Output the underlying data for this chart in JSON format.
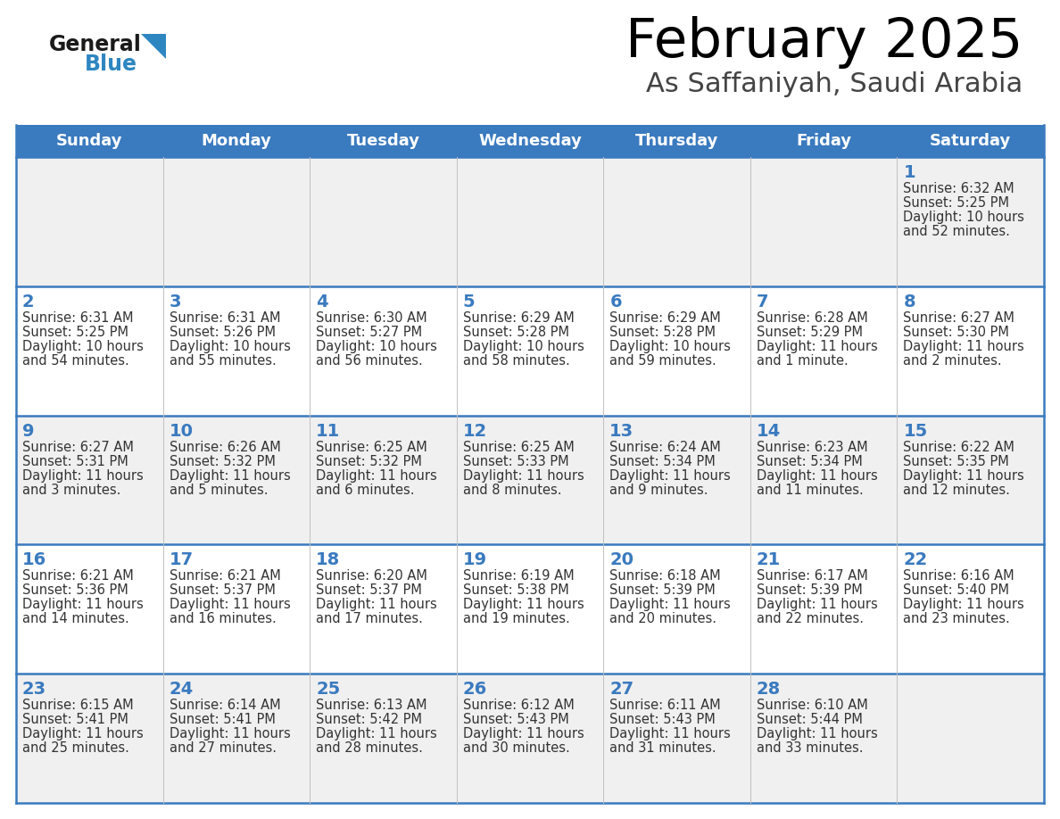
{
  "title": "February 2025",
  "subtitle": "As Saffaniyah, Saudi Arabia",
  "days_of_week": [
    "Sunday",
    "Monday",
    "Tuesday",
    "Wednesday",
    "Thursday",
    "Friday",
    "Saturday"
  ],
  "header_bg": "#3a7abf",
  "header_text_color": "#ffffff",
  "cell_bg_odd": "#f0f0f0",
  "cell_bg_even": "#ffffff",
  "border_color": "#3a7abf",
  "title_color": "#000000",
  "subtitle_color": "#444444",
  "day_number_color": "#3a7abf",
  "detail_color": "#333333",
  "logo_general_color": "#1a1a1a",
  "logo_blue_color": "#2e86c1",
  "calendar_data": [
    [
      null,
      null,
      null,
      null,
      null,
      null,
      {
        "day": "1",
        "sunrise": "6:32 AM",
        "sunset": "5:25 PM",
        "daylight": "10 hours\nand 52 minutes."
      }
    ],
    [
      {
        "day": "2",
        "sunrise": "6:31 AM",
        "sunset": "5:25 PM",
        "daylight": "10 hours\nand 54 minutes."
      },
      {
        "day": "3",
        "sunrise": "6:31 AM",
        "sunset": "5:26 PM",
        "daylight": "10 hours\nand 55 minutes."
      },
      {
        "day": "4",
        "sunrise": "6:30 AM",
        "sunset": "5:27 PM",
        "daylight": "10 hours\nand 56 minutes."
      },
      {
        "day": "5",
        "sunrise": "6:29 AM",
        "sunset": "5:28 PM",
        "daylight": "10 hours\nand 58 minutes."
      },
      {
        "day": "6",
        "sunrise": "6:29 AM",
        "sunset": "5:28 PM",
        "daylight": "10 hours\nand 59 minutes."
      },
      {
        "day": "7",
        "sunrise": "6:28 AM",
        "sunset": "5:29 PM",
        "daylight": "11 hours\nand 1 minute."
      },
      {
        "day": "8",
        "sunrise": "6:27 AM",
        "sunset": "5:30 PM",
        "daylight": "11 hours\nand 2 minutes."
      }
    ],
    [
      {
        "day": "9",
        "sunrise": "6:27 AM",
        "sunset": "5:31 PM",
        "daylight": "11 hours\nand 3 minutes."
      },
      {
        "day": "10",
        "sunrise": "6:26 AM",
        "sunset": "5:32 PM",
        "daylight": "11 hours\nand 5 minutes."
      },
      {
        "day": "11",
        "sunrise": "6:25 AM",
        "sunset": "5:32 PM",
        "daylight": "11 hours\nand 6 minutes."
      },
      {
        "day": "12",
        "sunrise": "6:25 AM",
        "sunset": "5:33 PM",
        "daylight": "11 hours\nand 8 minutes."
      },
      {
        "day": "13",
        "sunrise": "6:24 AM",
        "sunset": "5:34 PM",
        "daylight": "11 hours\nand 9 minutes."
      },
      {
        "day": "14",
        "sunrise": "6:23 AM",
        "sunset": "5:34 PM",
        "daylight": "11 hours\nand 11 minutes."
      },
      {
        "day": "15",
        "sunrise": "6:22 AM",
        "sunset": "5:35 PM",
        "daylight": "11 hours\nand 12 minutes."
      }
    ],
    [
      {
        "day": "16",
        "sunrise": "6:21 AM",
        "sunset": "5:36 PM",
        "daylight": "11 hours\nand 14 minutes."
      },
      {
        "day": "17",
        "sunrise": "6:21 AM",
        "sunset": "5:37 PM",
        "daylight": "11 hours\nand 16 minutes."
      },
      {
        "day": "18",
        "sunrise": "6:20 AM",
        "sunset": "5:37 PM",
        "daylight": "11 hours\nand 17 minutes."
      },
      {
        "day": "19",
        "sunrise": "6:19 AM",
        "sunset": "5:38 PM",
        "daylight": "11 hours\nand 19 minutes."
      },
      {
        "day": "20",
        "sunrise": "6:18 AM",
        "sunset": "5:39 PM",
        "daylight": "11 hours\nand 20 minutes."
      },
      {
        "day": "21",
        "sunrise": "6:17 AM",
        "sunset": "5:39 PM",
        "daylight": "11 hours\nand 22 minutes."
      },
      {
        "day": "22",
        "sunrise": "6:16 AM",
        "sunset": "5:40 PM",
        "daylight": "11 hours\nand 23 minutes."
      }
    ],
    [
      {
        "day": "23",
        "sunrise": "6:15 AM",
        "sunset": "5:41 PM",
        "daylight": "11 hours\nand 25 minutes."
      },
      {
        "day": "24",
        "sunrise": "6:14 AM",
        "sunset": "5:41 PM",
        "daylight": "11 hours\nand 27 minutes."
      },
      {
        "day": "25",
        "sunrise": "6:13 AM",
        "sunset": "5:42 PM",
        "daylight": "11 hours\nand 28 minutes."
      },
      {
        "day": "26",
        "sunrise": "6:12 AM",
        "sunset": "5:43 PM",
        "daylight": "11 hours\nand 30 minutes."
      },
      {
        "day": "27",
        "sunrise": "6:11 AM",
        "sunset": "5:43 PM",
        "daylight": "11 hours\nand 31 minutes."
      },
      {
        "day": "28",
        "sunrise": "6:10 AM",
        "sunset": "5:44 PM",
        "daylight": "11 hours\nand 33 minutes."
      },
      null
    ]
  ]
}
